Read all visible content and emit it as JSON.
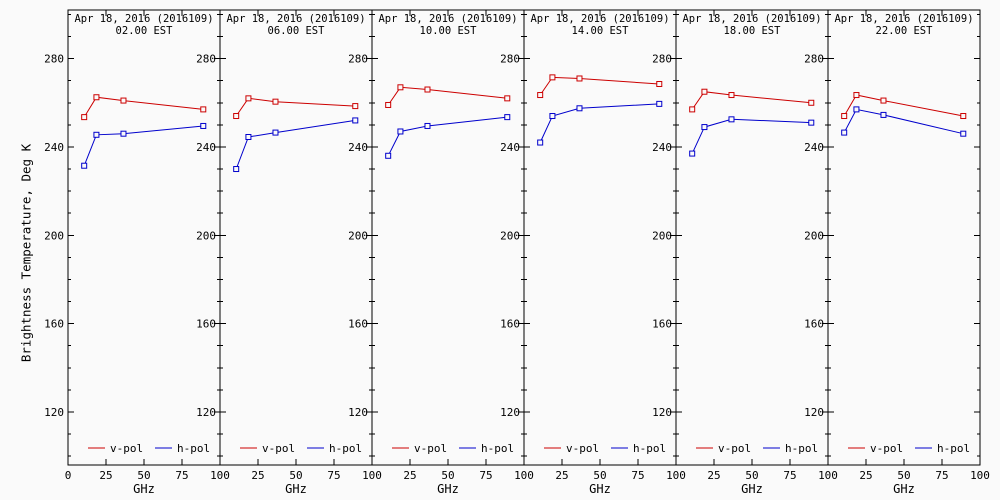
{
  "page": {
    "background": "#fafafa",
    "accent_red": "#cc0000",
    "accent_blue": "#0000cc"
  },
  "axes": {
    "ylabel": "Brightness Temperature, Deg K",
    "xlabel": "GHz",
    "xlim": [
      0,
      100
    ],
    "ylim": [
      96,
      302
    ],
    "xticks": [
      0,
      25,
      50,
      75,
      100
    ],
    "yticks": [
      120,
      160,
      200,
      240,
      280
    ],
    "y_minor_step": 10,
    "grid": "off",
    "legend_position": "bottom-inside"
  },
  "legend": [
    {
      "label": "v-pol",
      "color": "#cc0000"
    },
    {
      "label": "h-pol",
      "color": "#0000cc"
    }
  ],
  "chart_data": [
    {
      "type": "line",
      "title": "Apr 18, 2016 (2016109)",
      "subtitle": "02.00 EST",
      "x": [
        10.65,
        18.7,
        36.5,
        89.0
      ],
      "series": [
        {
          "name": "v-pol",
          "color": "#cc0000",
          "values": [
            253.5,
            262.5,
            261.0,
            257.0
          ]
        },
        {
          "name": "h-pol",
          "color": "#0000cc",
          "values": [
            231.5,
            245.5,
            246.0,
            249.5
          ]
        }
      ]
    },
    {
      "type": "line",
      "title": "Apr 18, 2016 (2016109)",
      "subtitle": "06.00 EST",
      "x": [
        10.65,
        18.7,
        36.5,
        89.0
      ],
      "series": [
        {
          "name": "v-pol",
          "color": "#cc0000",
          "values": [
            254.0,
            262.0,
            260.5,
            258.5
          ]
        },
        {
          "name": "h-pol",
          "color": "#0000cc",
          "values": [
            230.0,
            244.5,
            246.5,
            252.0
          ]
        }
      ]
    },
    {
      "type": "line",
      "title": "Apr 18, 2016 (2016109)",
      "subtitle": "10.00 EST",
      "x": [
        10.65,
        18.7,
        36.5,
        89.0
      ],
      "series": [
        {
          "name": "v-pol",
          "color": "#cc0000",
          "values": [
            259.0,
            267.0,
            266.0,
            262.0
          ]
        },
        {
          "name": "h-pol",
          "color": "#0000cc",
          "values": [
            236.0,
            247.0,
            249.5,
            253.5
          ]
        }
      ]
    },
    {
      "type": "line",
      "title": "Apr 18, 2016 (2016109)",
      "subtitle": "14.00 EST",
      "x": [
        10.65,
        18.7,
        36.5,
        89.0
      ],
      "series": [
        {
          "name": "v-pol",
          "color": "#cc0000",
          "values": [
            263.5,
            271.5,
            271.0,
            268.5
          ]
        },
        {
          "name": "h-pol",
          "color": "#0000cc",
          "values": [
            242.0,
            254.0,
            257.5,
            259.5
          ]
        }
      ]
    },
    {
      "type": "line",
      "title": "Apr 18, 2016 (2016109)",
      "subtitle": "18.00 EST",
      "x": [
        10.65,
        18.7,
        36.5,
        89.0
      ],
      "series": [
        {
          "name": "v-pol",
          "color": "#cc0000",
          "values": [
            257.0,
            265.0,
            263.5,
            260.0
          ]
        },
        {
          "name": "h-pol",
          "color": "#0000cc",
          "values": [
            237.0,
            249.0,
            252.5,
            251.0
          ]
        }
      ]
    },
    {
      "type": "line",
      "title": "Apr 18, 2016 (2016109)",
      "subtitle": "22.00 EST",
      "x": [
        10.65,
        18.7,
        36.5,
        89.0
      ],
      "series": [
        {
          "name": "v-pol",
          "color": "#cc0000",
          "values": [
            254.0,
            263.5,
            261.0,
            254.0
          ]
        },
        {
          "name": "h-pol",
          "color": "#0000cc",
          "values": [
            246.5,
            257.0,
            254.5,
            246.0
          ]
        }
      ]
    }
  ]
}
